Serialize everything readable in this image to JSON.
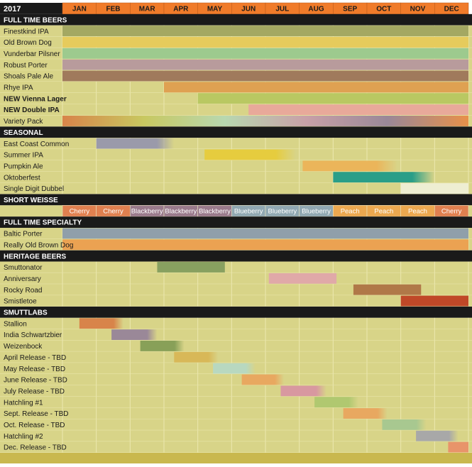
{
  "header": {
    "year": "2017",
    "months": [
      "JAN",
      "FEB",
      "MAR",
      "APR",
      "MAY",
      "JUN",
      "JUL",
      "AUG",
      "SEP",
      "OCT",
      "NOV",
      "DEC"
    ]
  },
  "sections": [
    {
      "title": "FULL TIME BEERS",
      "rows": [
        {
          "label": "Finestkind IPA",
          "start": 0,
          "end": 12,
          "color": "#a4a862"
        },
        {
          "label": "Old Brown Dog",
          "start": 0,
          "end": 12,
          "color": "#e6cb5c"
        },
        {
          "label": "Vunderbar Pilsner",
          "start": 0,
          "end": 12,
          "color": "#9dca8e"
        },
        {
          "label": "Robust Porter",
          "start": 0,
          "end": 12,
          "color": "#b89b9c"
        },
        {
          "label": "Shoals Pale Ale",
          "start": 0,
          "end": 12,
          "color": "#a07a5c"
        },
        {
          "label": "Rhye IPA",
          "start": 3,
          "end": 12,
          "color": "#dfa152"
        },
        {
          "label": "NEW Vienna Lager",
          "start": 4,
          "end": 12,
          "color": "#b9c862",
          "bold": true
        },
        {
          "label": "NEW Double IPA",
          "start": 5.5,
          "end": 12,
          "color": "#e8a99a",
          "bold": true
        },
        {
          "label": "Variety Pack",
          "start": 0,
          "end": 12,
          "colors": [
            "#d8844a",
            "#c8c860",
            "#b8d8b0",
            "#c8a0a8",
            "#9a8898",
            "#e8904a"
          ]
        }
      ]
    },
    {
      "title": "SEASONAL",
      "rows": [
        {
          "label": "East Coast Common",
          "start": 1,
          "end": 3.3,
          "color": "#9a9aaa",
          "fade": true
        },
        {
          "label": "Summer IPA",
          "start": 4.2,
          "end": 6.9,
          "color": "#e6cc3e",
          "fade": true
        },
        {
          "label": "Pumpkin Ale",
          "start": 7.1,
          "end": 9.9,
          "color": "#ebb55a",
          "fade": true
        },
        {
          "label": "Oktoberfest",
          "start": 8,
          "end": 11,
          "color": "#2a9e88",
          "fade": true
        },
        {
          "label": "Single Digit Dubbel",
          "start": 10,
          "end": 12,
          "color": "#eeeed2"
        }
      ]
    },
    {
      "title": "SHORT WEISSE",
      "flavors": [
        {
          "label": "Cherry",
          "color": "#e08050"
        },
        {
          "label": "Cherry",
          "color": "#e08050"
        },
        {
          "label": "Blackberry",
          "color": "#9a7a8c"
        },
        {
          "label": "Blackberry",
          "color": "#9a7a8c"
        },
        {
          "label": "Blackberry",
          "color": "#9a7a8c"
        },
        {
          "label": "Blueberry",
          "color": "#91a8b2"
        },
        {
          "label": "Blueberry",
          "color": "#91a8b2"
        },
        {
          "label": "Blueberry",
          "color": "#91a8b2"
        },
        {
          "label": "Peach",
          "color": "#eca850"
        },
        {
          "label": "Peach",
          "color": "#eca850"
        },
        {
          "label": "Peach",
          "color": "#eca850"
        },
        {
          "label": "Cherry",
          "color": "#e08050"
        }
      ]
    },
    {
      "title": "FULL TIME SPECIALTY",
      "rows": [
        {
          "label": "Baltic Porter",
          "start": 0,
          "end": 12,
          "color": "#909faa"
        },
        {
          "label": "Really Old Brown Dog",
          "start": 0,
          "end": 12,
          "color": "#eba252"
        }
      ]
    },
    {
      "title": "HERITAGE BEERS",
      "rows": [
        {
          "label": "Smuttonator",
          "start": 2.8,
          "end": 4.8,
          "color": "#88a060"
        },
        {
          "label": "Anniversary",
          "start": 6.1,
          "end": 8.1,
          "color": "#e0a9a8"
        },
        {
          "label": "Rocky Road",
          "start": 8.6,
          "end": 10.6,
          "color": "#b07848"
        },
        {
          "label": "Smistletoe",
          "start": 10,
          "end": 12,
          "color": "#c04828"
        }
      ]
    },
    {
      "title": "SMUTTLABS",
      "rows": [
        {
          "label": "Stallion",
          "start": 0.5,
          "end": 1.8,
          "color": "#d8844a",
          "fade": true
        },
        {
          "label": "India Schwartzbier",
          "start": 1.45,
          "end": 2.8,
          "color": "#9a8898",
          "fade": true
        },
        {
          "label": "Weizenbock",
          "start": 2.3,
          "end": 3.6,
          "color": "#88a058",
          "fade": true
        },
        {
          "label": "April Release - TBD",
          "start": 3.3,
          "end": 4.6,
          "color": "#d8b858",
          "fade": true
        },
        {
          "label": "May Release - TBD",
          "start": 4.45,
          "end": 5.7,
          "color": "#b8d8c0",
          "fade": true
        },
        {
          "label": "June Release - TBD",
          "start": 5.3,
          "end": 6.55,
          "color": "#e8a860",
          "fade": true
        },
        {
          "label": "July Release - TBD",
          "start": 6.45,
          "end": 7.8,
          "color": "#d898a0",
          "fade": true
        },
        {
          "label": "Hatchling #1",
          "start": 7.45,
          "end": 8.75,
          "color": "#b0c870",
          "fade": true
        },
        {
          "label": "Sept. Release - TBD",
          "start": 8.3,
          "end": 9.6,
          "color": "#e8a860",
          "fade": true
        },
        {
          "label": "Oct. Release - TBD",
          "start": 9.45,
          "end": 10.75,
          "color": "#a8c890",
          "fade": true
        },
        {
          "label": "Hatchling #2",
          "start": 10.45,
          "end": 11.7,
          "color": "#a8a8a8",
          "fade": true
        },
        {
          "label": "Dec. Release - TBD",
          "start": 11.4,
          "end": 12,
          "color": "#e8946a"
        }
      ]
    }
  ]
}
